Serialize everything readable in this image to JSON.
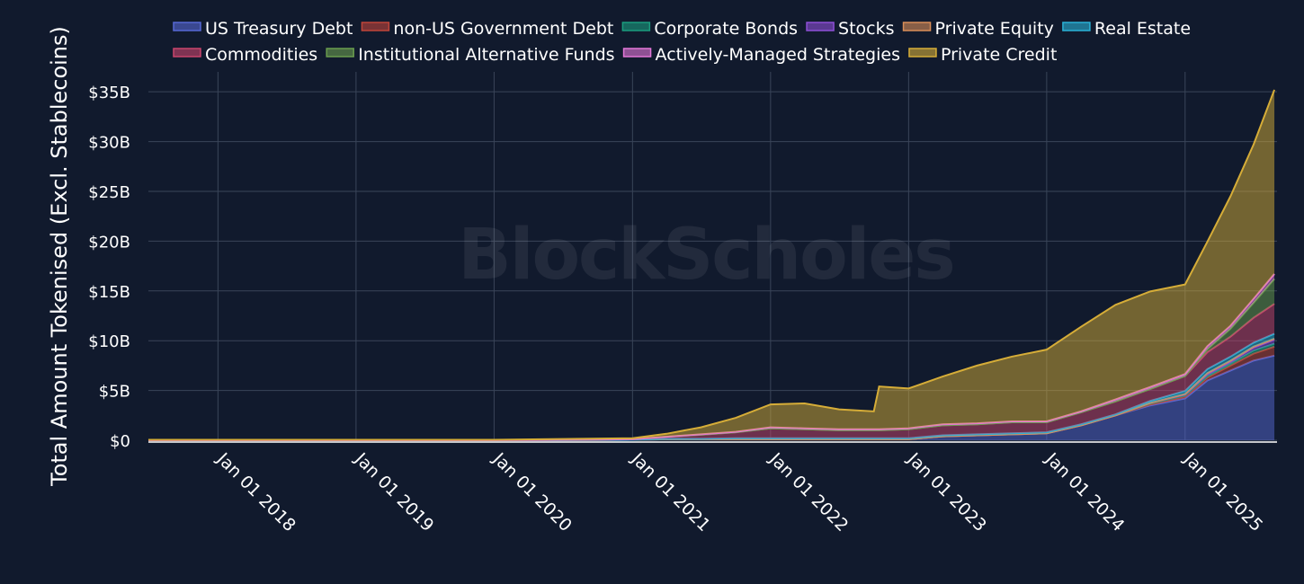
{
  "watermark": "BlockScholes",
  "chart_data": {
    "type": "area",
    "stacked": true,
    "ylabel": "Total Amount Tokenised (Excl. Stablecoins)",
    "xlabel": "",
    "ylim": [
      0,
      37
    ],
    "y_unit": "billion USD",
    "y_ticks": [
      0,
      5,
      10,
      15,
      20,
      25,
      30,
      35
    ],
    "y_tick_labels": [
      "$0",
      "$5B",
      "$10B",
      "$15B",
      "$20B",
      "$25B",
      "$30B",
      "$35B"
    ],
    "x_range": [
      "2017-07-01",
      "2025-09-01"
    ],
    "x_ticks": [
      "2018-01-01",
      "2019-01-01",
      "2020-01-01",
      "2021-01-01",
      "2022-01-01",
      "2023-01-01",
      "2024-01-01",
      "2025-01-01"
    ],
    "x_tick_labels": [
      "Jan 01 2018",
      "Jan 01 2019",
      "Jan 01 2020",
      "Jan 01 2021",
      "Jan 01 2022",
      "Jan 01 2023",
      "Jan 01 2024",
      "Jan 01 2025"
    ],
    "grid": true,
    "legend_position": "top",
    "dates": [
      "2017-07-01",
      "2020-01-01",
      "2021-01-01",
      "2021-04-01",
      "2021-07-01",
      "2021-10-01",
      "2022-01-01",
      "2022-04-01",
      "2022-07-01",
      "2022-10-01",
      "2022-10-15",
      "2023-01-01",
      "2023-04-01",
      "2023-07-01",
      "2023-10-01",
      "2024-01-01",
      "2024-04-01",
      "2024-07-01",
      "2024-10-01",
      "2025-01-01",
      "2025-03-01",
      "2025-05-01",
      "2025-07-01",
      "2025-08-25"
    ],
    "series": [
      {
        "name": "US Treasury Debt",
        "color": "#5668d4",
        "values": [
          0,
          0,
          0.05,
          0.1,
          0.1,
          0.1,
          0.1,
          0.1,
          0.1,
          0.1,
          0.1,
          0.1,
          0.4,
          0.5,
          0.6,
          0.7,
          1.5,
          2.5,
          3.5,
          4.2,
          6.0,
          7.0,
          8.0,
          8.5
        ]
      },
      {
        "name": "non-US Government Debt",
        "color": "#c0453a",
        "values": [
          0,
          0,
          0,
          0,
          0,
          0,
          0,
          0,
          0,
          0,
          0,
          0,
          0,
          0,
          0,
          0,
          0,
          0,
          0.1,
          0.2,
          0.3,
          0.5,
          0.7,
          0.9
        ]
      },
      {
        "name": "Corporate Bonds",
        "color": "#1a9c7e",
        "values": [
          0,
          0,
          0,
          0,
          0,
          0,
          0,
          0,
          0,
          0,
          0,
          0,
          0,
          0,
          0,
          0,
          0,
          0,
          0.1,
          0.1,
          0.15,
          0.2,
          0.3,
          0.3
        ]
      },
      {
        "name": "Stocks",
        "color": "#8e4fd6",
        "values": [
          0,
          0,
          0,
          0,
          0,
          0,
          0,
          0,
          0,
          0,
          0,
          0,
          0,
          0,
          0,
          0,
          0,
          0,
          0.05,
          0.1,
          0.2,
          0.2,
          0.3,
          0.4
        ]
      },
      {
        "name": "Private Equity",
        "color": "#d98e58",
        "values": [
          0,
          0,
          0,
          0,
          0,
          0,
          0,
          0,
          0,
          0,
          0,
          0,
          0,
          0,
          0,
          0,
          0,
          0,
          0,
          0.05,
          0.1,
          0.1,
          0.1,
          0.1
        ]
      },
      {
        "name": "Real Estate",
        "color": "#2ab2d6",
        "values": [
          0,
          0,
          0,
          0.05,
          0.05,
          0.1,
          0.1,
          0.1,
          0.1,
          0.1,
          0.1,
          0.1,
          0.1,
          0.1,
          0.1,
          0.1,
          0.1,
          0.1,
          0.2,
          0.3,
          0.4,
          0.4,
          0.4,
          0.5
        ]
      },
      {
        "name": "Commodities",
        "color": "#c9456d",
        "values": [
          0,
          0,
          0.05,
          0.2,
          0.4,
          0.6,
          1.0,
          0.9,
          0.8,
          0.8,
          0.8,
          0.9,
          1.0,
          1.0,
          1.1,
          1.0,
          1.2,
          1.3,
          1.2,
          1.5,
          1.7,
          2.0,
          2.5,
          3.0
        ]
      },
      {
        "name": "Institutional Alternative Funds",
        "color": "#6a9d4e",
        "values": [
          0,
          0,
          0,
          0,
          0,
          0,
          0,
          0,
          0,
          0,
          0,
          0,
          0,
          0,
          0,
          0,
          0,
          0,
          0,
          0,
          0.3,
          0.8,
          1.5,
          2.5
        ]
      },
      {
        "name": "Actively-Managed Strategies",
        "color": "#e377d8",
        "values": [
          0,
          0,
          0,
          0,
          0.05,
          0.05,
          0.1,
          0.1,
          0.1,
          0.1,
          0.1,
          0.1,
          0.1,
          0.1,
          0.1,
          0.1,
          0.1,
          0.2,
          0.2,
          0.2,
          0.3,
          0.3,
          0.4,
          0.5
        ]
      },
      {
        "name": "Private Credit",
        "color": "#d6ad38",
        "values": [
          0.05,
          0.05,
          0.1,
          0.3,
          0.7,
          1.4,
          2.3,
          2.5,
          2.0,
          1.8,
          4.3,
          4.0,
          4.8,
          5.8,
          6.5,
          7.2,
          8.5,
          9.5,
          9.6,
          9.0,
          10.5,
          13.0,
          15.5,
          18.5
        ]
      }
    ]
  }
}
